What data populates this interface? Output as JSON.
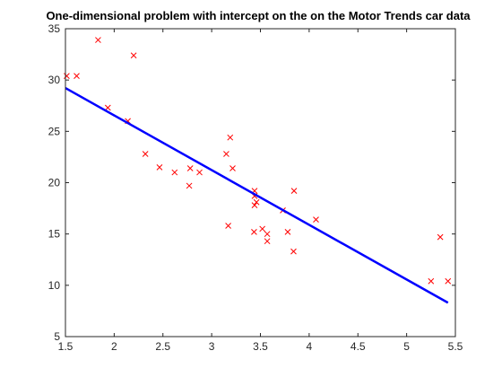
{
  "chart_data": {
    "type": "scatter",
    "title": "One-dimensional problem with intercept on the on the Motor Trends car data",
    "xlabel": "",
    "ylabel": "",
    "xlim": [
      1.5,
      5.5
    ],
    "ylim": [
      5,
      35
    ],
    "xticks": [
      1.5,
      2,
      2.5,
      3,
      3.5,
      4,
      4.5,
      5,
      5.5
    ],
    "yticks": [
      5,
      10,
      15,
      20,
      25,
      30,
      35
    ],
    "xtick_labels": [
      "1.5",
      "2",
      "2.5",
      "3",
      "3.5",
      "4",
      "4.5",
      "5",
      "5.5"
    ],
    "ytick_labels": [
      "5",
      "10",
      "15",
      "20",
      "25",
      "30",
      "35"
    ],
    "grid": false,
    "series": [
      {
        "marker": "x",
        "color": "#ff0000",
        "points": [
          [
            1.513,
            30.4
          ],
          [
            1.615,
            30.4
          ],
          [
            1.835,
            33.9
          ],
          [
            1.935,
            27.3
          ],
          [
            2.14,
            26.0
          ],
          [
            2.2,
            32.4
          ],
          [
            2.32,
            22.8
          ],
          [
            2.465,
            21.5
          ],
          [
            2.62,
            21.0
          ],
          [
            2.77,
            19.7
          ],
          [
            2.78,
            21.4
          ],
          [
            2.875,
            21.0
          ],
          [
            3.15,
            22.8
          ],
          [
            3.17,
            15.8
          ],
          [
            3.19,
            24.4
          ],
          [
            3.215,
            21.4
          ],
          [
            3.435,
            15.2
          ],
          [
            3.44,
            18.7
          ],
          [
            3.44,
            19.2
          ],
          [
            3.44,
            17.8
          ],
          [
            3.46,
            18.1
          ],
          [
            3.52,
            15.5
          ],
          [
            3.57,
            15.0
          ],
          [
            3.57,
            14.3
          ],
          [
            3.73,
            17.3
          ],
          [
            3.78,
            15.2
          ],
          [
            3.84,
            13.3
          ],
          [
            3.845,
            19.2
          ],
          [
            4.07,
            16.4
          ],
          [
            5.25,
            10.4
          ],
          [
            5.345,
            14.7
          ],
          [
            5.424,
            10.4
          ]
        ]
      },
      {
        "type": "line",
        "color": "#0000ff",
        "x": [
          1.5,
          5.424
        ],
        "y": [
          29.22,
          8.3
        ]
      }
    ]
  }
}
